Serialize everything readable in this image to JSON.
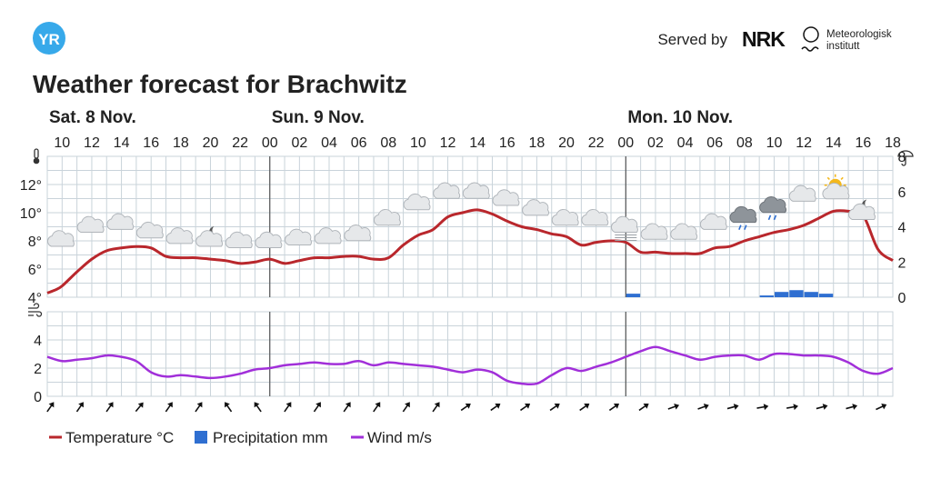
{
  "header": {
    "logo_text": "YR",
    "served_by": "Served by",
    "partner1_logo": "NRK",
    "partner2_line1": "Meteorologisk",
    "partner2_line2": "institutt"
  },
  "colors": {
    "temperature": "#b9272c",
    "precipitation": "#2f6fd1",
    "wind": "#a12fd9",
    "grid": "#c9d3da",
    "logo": "#37a9ea"
  },
  "chart_data": {
    "type": "line",
    "title": "Weather forecast for Brachwitz",
    "days": [
      {
        "label": "Sat. 8 Nov.",
        "start_hour": 9
      },
      {
        "label": "Sun. 9 Nov.",
        "start_hour": 24
      },
      {
        "label": "Mon. 10 Nov.",
        "start_hour": 48
      }
    ],
    "x_range_hours": [
      9,
      66
    ],
    "hour_ticks": [
      {
        "h": 10,
        "l": "10"
      },
      {
        "h": 12,
        "l": "12"
      },
      {
        "h": 14,
        "l": "14"
      },
      {
        "h": 16,
        "l": "16"
      },
      {
        "h": 18,
        "l": "18"
      },
      {
        "h": 20,
        "l": "20"
      },
      {
        "h": 22,
        "l": "22"
      },
      {
        "h": 24,
        "l": "00"
      },
      {
        "h": 26,
        "l": "02"
      },
      {
        "h": 28,
        "l": "04"
      },
      {
        "h": 30,
        "l": "06"
      },
      {
        "h": 32,
        "l": "08"
      },
      {
        "h": 34,
        "l": "10"
      },
      {
        "h": 36,
        "l": "12"
      },
      {
        "h": 38,
        "l": "14"
      },
      {
        "h": 40,
        "l": "16"
      },
      {
        "h": 42,
        "l": "18"
      },
      {
        "h": 44,
        "l": "20"
      },
      {
        "h": 46,
        "l": "22"
      },
      {
        "h": 48,
        "l": "00"
      },
      {
        "h": 50,
        "l": "02"
      },
      {
        "h": 52,
        "l": "04"
      },
      {
        "h": 54,
        "l": "06"
      },
      {
        "h": 56,
        "l": "08"
      },
      {
        "h": 58,
        "l": "10"
      },
      {
        "h": 60,
        "l": "12"
      },
      {
        "h": 62,
        "l": "14"
      },
      {
        "h": 64,
        "l": "16"
      },
      {
        "h": 66,
        "l": "18"
      }
    ],
    "temperature": {
      "name": "Temperature °C",
      "ylim": [
        4,
        14
      ],
      "yticks": [
        {
          "v": 4,
          "l": "4°"
        },
        {
          "v": 6,
          "l": "6°"
        },
        {
          "v": 8,
          "l": "8°"
        },
        {
          "v": 10,
          "l": "10°"
        },
        {
          "v": 12,
          "l": "12°"
        }
      ],
      "hours": [
        9,
        9.5,
        10,
        11,
        12,
        13,
        14,
        15,
        16,
        17,
        18,
        19,
        20,
        21,
        22,
        23,
        24,
        25,
        26,
        27,
        28,
        29,
        30,
        31,
        32,
        33,
        34,
        35,
        36,
        37,
        38,
        39,
        40,
        41,
        42,
        43,
        44,
        45,
        46,
        47,
        48,
        49,
        50,
        51,
        52,
        53,
        54,
        55,
        56,
        57,
        58,
        59,
        60,
        61,
        62,
        63,
        64,
        65,
        66
      ],
      "values": [
        4.3,
        4.5,
        4.8,
        5.8,
        6.7,
        7.3,
        7.5,
        7.6,
        7.5,
        6.9,
        6.8,
        6.8,
        6.7,
        6.6,
        6.4,
        6.5,
        6.7,
        6.4,
        6.6,
        6.8,
        6.8,
        6.9,
        6.9,
        6.7,
        6.8,
        7.7,
        8.4,
        8.8,
        9.7,
        10.0,
        10.2,
        9.9,
        9.4,
        9.0,
        8.8,
        8.5,
        8.3,
        7.7,
        7.9,
        8.0,
        7.9,
        7.2,
        7.2,
        7.1,
        7.1,
        7.1,
        7.5,
        7.6,
        8.0,
        8.3,
        8.6,
        8.8,
        9.1,
        9.6,
        10.1,
        10.1,
        9.8,
        7.4,
        6.6
      ]
    },
    "precipitation": {
      "name": "Precipitation mm",
      "ylim": [
        0,
        8
      ],
      "yticks": [
        {
          "v": 0,
          "l": "0"
        },
        {
          "v": 2,
          "l": "2"
        },
        {
          "v": 4,
          "l": "4"
        },
        {
          "v": 6,
          "l": "6"
        },
        {
          "v": 8,
          "l": "8"
        }
      ],
      "bars": [
        {
          "hour": 48,
          "value": 0.2
        },
        {
          "hour": 57,
          "value": 0.1
        },
        {
          "hour": 58,
          "value": 0.3
        },
        {
          "hour": 59,
          "value": 0.4
        },
        {
          "hour": 60,
          "value": 0.3
        },
        {
          "hour": 61,
          "value": 0.2
        }
      ]
    },
    "wind": {
      "name": "Wind m/s",
      "ylim": [
        0,
        6
      ],
      "yticks": [
        {
          "v": 0,
          "l": "0"
        },
        {
          "v": 2,
          "l": "2"
        },
        {
          "v": 4,
          "l": "4"
        }
      ],
      "hours": [
        9,
        10,
        11,
        12,
        13,
        14,
        15,
        16,
        17,
        18,
        19,
        20,
        21,
        22,
        23,
        24,
        25,
        26,
        27,
        28,
        29,
        30,
        31,
        32,
        33,
        34,
        35,
        36,
        37,
        38,
        39,
        40,
        41,
        42,
        43,
        44,
        45,
        46,
        47,
        48,
        49,
        50,
        51,
        52,
        53,
        54,
        55,
        56,
        57,
        58,
        59,
        60,
        61,
        62,
        63,
        64,
        65,
        66
      ],
      "values": [
        2.8,
        2.5,
        2.6,
        2.7,
        2.9,
        2.8,
        2.5,
        1.7,
        1.4,
        1.5,
        1.4,
        1.3,
        1.4,
        1.6,
        1.9,
        2.0,
        2.2,
        2.3,
        2.4,
        2.3,
        2.3,
        2.5,
        2.2,
        2.4,
        2.3,
        2.2,
        2.1,
        1.9,
        1.7,
        1.9,
        1.7,
        1.1,
        0.9,
        0.9,
        1.5,
        2.0,
        1.8,
        2.1,
        2.4,
        2.8,
        3.2,
        3.5,
        3.2,
        2.9,
        2.6,
        2.8,
        2.9,
        2.9,
        2.6,
        3.0,
        3.0,
        2.9,
        2.9,
        2.8,
        2.4,
        1.8,
        1.6,
        2.0
      ]
    },
    "wind_direction_deg": [
      35,
      35,
      35,
      35,
      40,
      35,
      35,
      35,
      325,
      325,
      325,
      35,
      35,
      35,
      35,
      35,
      35,
      35,
      35,
      55,
      55,
      55,
      55,
      55,
      55,
      55,
      55,
      55,
      55,
      65,
      70,
      70,
      75,
      75,
      80,
      80,
      80,
      75,
      75,
      70,
      65,
      65
    ],
    "weather_symbols": [
      {
        "hour": 10,
        "value": 8.0,
        "icon": "cloud-icon"
      },
      {
        "hour": 12,
        "value": 9.0,
        "icon": "cloud-icon"
      },
      {
        "hour": 14,
        "value": 9.2,
        "icon": "cloud-icon"
      },
      {
        "hour": 16,
        "value": 8.6,
        "icon": "cloud-icon"
      },
      {
        "hour": 18,
        "value": 8.2,
        "icon": "cloud-icon"
      },
      {
        "hour": 20,
        "value": 8.0,
        "icon": "cloudy-night-icon"
      },
      {
        "hour": 22,
        "value": 7.9,
        "icon": "cloud-icon"
      },
      {
        "hour": 24,
        "value": 7.9,
        "icon": "cloud-icon"
      },
      {
        "hour": 26,
        "value": 8.1,
        "icon": "cloud-icon"
      },
      {
        "hour": 28,
        "value": 8.2,
        "icon": "cloud-icon"
      },
      {
        "hour": 30,
        "value": 8.4,
        "icon": "cloud-icon"
      },
      {
        "hour": 32,
        "value": 9.5,
        "icon": "cloud-icon"
      },
      {
        "hour": 34,
        "value": 10.6,
        "icon": "cloud-icon"
      },
      {
        "hour": 36,
        "value": 11.4,
        "icon": "cloud-icon"
      },
      {
        "hour": 38,
        "value": 11.4,
        "icon": "cloud-icon"
      },
      {
        "hour": 40,
        "value": 10.9,
        "icon": "cloud-icon"
      },
      {
        "hour": 42,
        "value": 10.2,
        "icon": "cloud-icon"
      },
      {
        "hour": 44,
        "value": 9.5,
        "icon": "cloud-icon"
      },
      {
        "hour": 46,
        "value": 9.5,
        "icon": "cloud-icon"
      },
      {
        "hour": 48,
        "value": 9.0,
        "icon": "fog-icon"
      },
      {
        "hour": 50,
        "value": 8.5,
        "icon": "cloud-icon"
      },
      {
        "hour": 52,
        "value": 8.5,
        "icon": "cloud-icon"
      },
      {
        "hour": 54,
        "value": 9.2,
        "icon": "cloud-icon"
      },
      {
        "hour": 56,
        "value": 9.7,
        "icon": "rain-cloud-icon"
      },
      {
        "hour": 58,
        "value": 10.4,
        "icon": "rain-cloud-icon"
      },
      {
        "hour": 60,
        "value": 11.2,
        "icon": "cloud-icon"
      },
      {
        "hour": 62,
        "value": 11.5,
        "icon": "partly-sunny-icon"
      },
      {
        "hour": 64,
        "value": 9.9,
        "icon": "cloudy-night-icon"
      }
    ]
  }
}
